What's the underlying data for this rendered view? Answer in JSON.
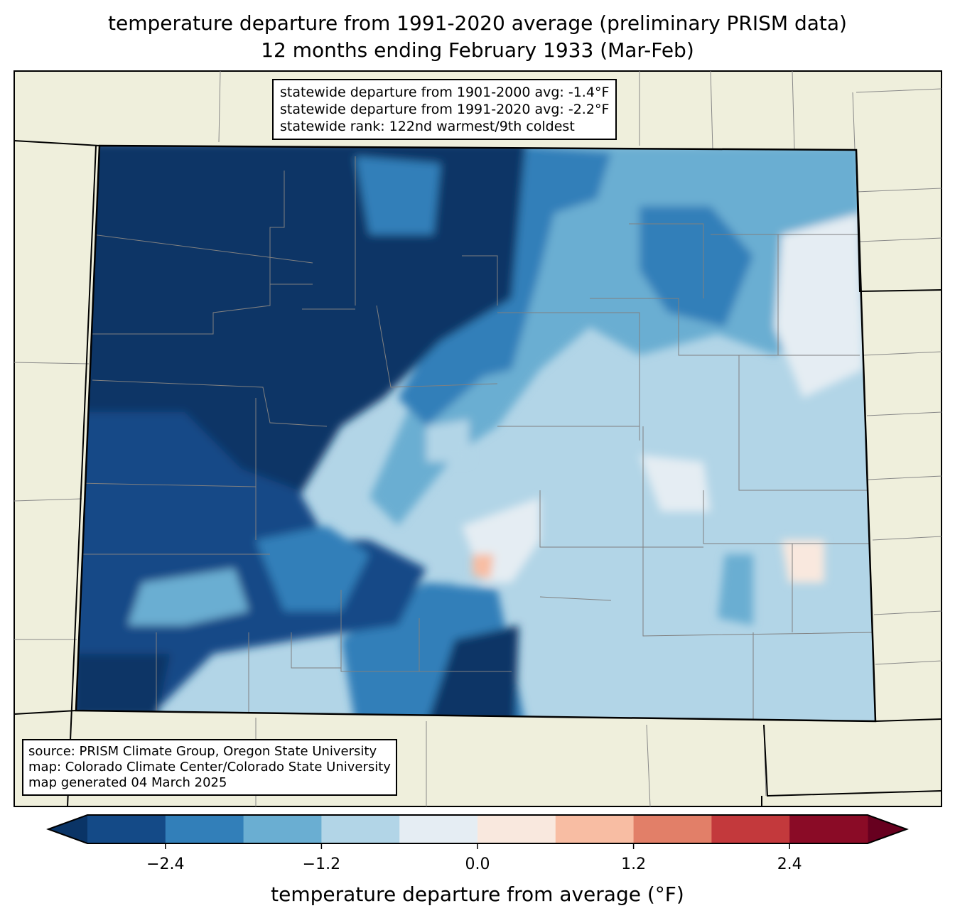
{
  "title": {
    "line1": "temperature departure from 1991-2020 average (preliminary PRISM data)",
    "line2": "12 months ending February 1933 (Mar-Feb)"
  },
  "stats_box": {
    "line1": "statewide departure from 1901-2000 avg: -1.4°F",
    "line2": "statewide departure from 1991-2020 avg: -2.2°F",
    "line3": "statewide rank: 122nd warmest/9th coldest"
  },
  "source_box": {
    "line1": "source: PRISM Climate Group, Oregon State University",
    "line2": "map: Colorado Climate Center/Colorado State University",
    "line3": "map generated 04 March 2025"
  },
  "colorbar": {
    "label": "temperature departure from average (°F)",
    "ticks": [
      "−2.4",
      "−1.2",
      "0.0",
      "1.2",
      "2.4"
    ],
    "tick_values": [
      -2.4,
      -1.2,
      0.0,
      1.2,
      2.4
    ],
    "bounds": [
      -3.0,
      -2.4,
      -1.8,
      -1.2,
      -0.6,
      0.0,
      0.6,
      1.2,
      1.8,
      2.4,
      3.0
    ],
    "under_color": "#0a3466",
    "over_color": "#67001f",
    "colors": [
      "#144a87",
      "#327fb9",
      "#6aaed2",
      "#b2d5e7",
      "#e5edf3",
      "#f9e8de",
      "#f8bda3",
      "#e27f68",
      "#c3393c",
      "#8a0b26"
    ]
  },
  "colors": {
    "land": "#efefdc",
    "county_lines": "#808080"
  }
}
